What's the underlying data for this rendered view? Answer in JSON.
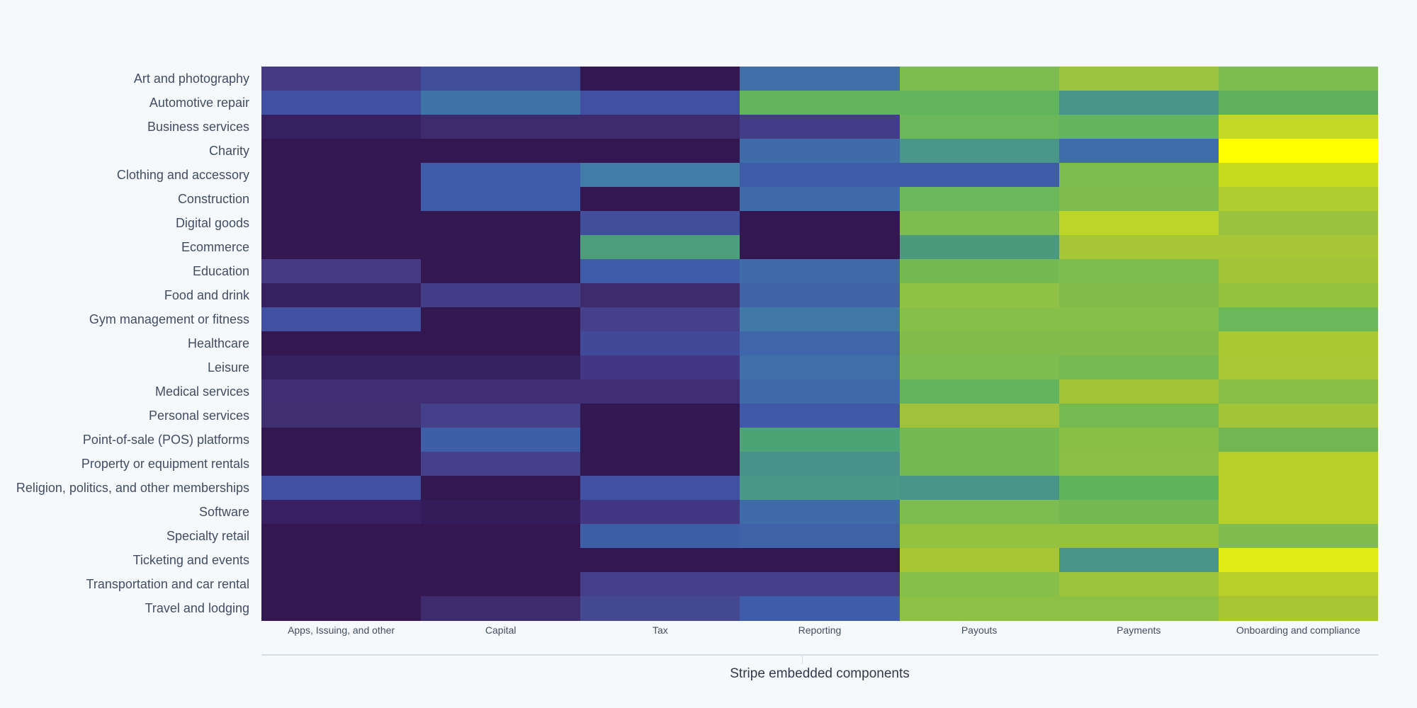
{
  "chart_data": {
    "type": "heatmap",
    "title": "",
    "xlabel": "Stripe embedded components",
    "ylabel": "",
    "grid": false,
    "legend": "none",
    "columns": [
      "Apps, Issuing, and other",
      "Capital",
      "Tax",
      "Reporting",
      "Payouts",
      "Payments",
      "Onboarding and compliance"
    ],
    "rows": [
      "Art and photography",
      "Automotive repair",
      "Business services",
      "Charity",
      "Clothing and accessory",
      "Construction",
      "Digital goods",
      "Ecommerce",
      "Education",
      "Food and drink",
      "Gym management or fitness",
      "Healthcare",
      "Leisure",
      "Medical services",
      "Personal services",
      "Point-of-sale (POS) platforms",
      "Property or equipment rentals",
      "Religion, politics, and other memberships",
      "Software",
      "Specialty retail",
      "Ticketing and events",
      "Transportation and car rental",
      "Travel and lodging"
    ],
    "cell_colors": [
      [
        "#463a84",
        "#414e9c",
        "#321751",
        "#3f6ea8",
        "#7cbc51",
        "#9bc33d",
        "#7cbc51"
      ],
      [
        "#4150a0",
        "#4074a8",
        "#4150a0",
        "#62b45e",
        "#62b45e",
        "#489488",
        "#5eb05c"
      ],
      [
        "#372060",
        "#3d2b6e",
        "#3d2b6e",
        "#433d88",
        "#6ab85a",
        "#62b45e",
        "#c3d824"
      ],
      [
        "#321751",
        "#321751",
        "#321751",
        "#3f6ca8",
        "#49978a",
        "#3f6daa",
        "#ffff00"
      ],
      [
        "#321751",
        "#3f5ca8",
        "#417ba8",
        "#3f5ca8",
        "#3f5ca8",
        "#7cbc51",
        "#c8da20"
      ],
      [
        "#321751",
        "#3f5ca8",
        "#321751",
        "#3f6ca8",
        "#6ab85a",
        "#80bd4e",
        "#b0cc2e"
      ],
      [
        "#321751",
        "#321751",
        "#414e9c",
        "#321751",
        "#7cbc51",
        "#bcd526",
        "#9ac23d"
      ],
      [
        "#321751",
        "#321751",
        "#4c9e7a",
        "#321751",
        "#4b9a7e",
        "#a6c636",
        "#a6c636"
      ],
      [
        "#463a84",
        "#321751",
        "#3f5ca8",
        "#3f6ca8",
        "#74ba52",
        "#7cbc51",
        "#a2c438"
      ],
      [
        "#372060",
        "#433d88",
        "#3d2b6e",
        "#3f62a8",
        "#8fc145",
        "#82bd4c",
        "#94c140"
      ],
      [
        "#4150a0",
        "#321751",
        "#45408a",
        "#4079a8",
        "#86bf4a",
        "#86bf4a",
        "#6ab85a"
      ],
      [
        "#321751",
        "#321751",
        "#414a98",
        "#3f66aa",
        "#82bd4c",
        "#82bd4c",
        "#aac832"
      ],
      [
        "#372060",
        "#372060",
        "#433784",
        "#3f6ea8",
        "#7ebd50",
        "#76ba52",
        "#aac834"
      ],
      [
        "#3f2e74",
        "#3f2e74",
        "#3f2e74",
        "#3f6ca8",
        "#62b45e",
        "#a2c438",
        "#88be48"
      ],
      [
        "#3f2e70",
        "#45408a",
        "#321751",
        "#3f58a8",
        "#a0c23a",
        "#76ba52",
        "#a2c438"
      ],
      [
        "#321751",
        "#3f5ea8",
        "#321751",
        "#4ba476",
        "#74ba52",
        "#8abf46",
        "#72b652"
      ],
      [
        "#321751",
        "#45408a",
        "#321751",
        "#49928a",
        "#74ba52",
        "#8cbf44",
        "#b6cf2a"
      ],
      [
        "#4150a0",
        "#321751",
        "#4150a0",
        "#4a9888",
        "#489488",
        "#60b45e",
        "#b6cf2a"
      ],
      [
        "#382062",
        "#341c5a",
        "#433784",
        "#3f6ca8",
        "#7cbc51",
        "#74b852",
        "#b6cf2a"
      ],
      [
        "#321751",
        "#321751",
        "#3f5ea8",
        "#3f62a8",
        "#94c140",
        "#94c140",
        "#80bd4e"
      ],
      [
        "#321751",
        "#321751",
        "#321751",
        "#321751",
        "#a8c634",
        "#489488",
        "#e0ea14"
      ],
      [
        "#321751",
        "#321751",
        "#45408a",
        "#45408a",
        "#86bf4a",
        "#9ec43b",
        "#b6cf2a"
      ],
      [
        "#321751",
        "#3d2b6e",
        "#434890",
        "#3f5ca8",
        "#8cc146",
        "#8cc146",
        "#a8c634"
      ]
    ]
  }
}
